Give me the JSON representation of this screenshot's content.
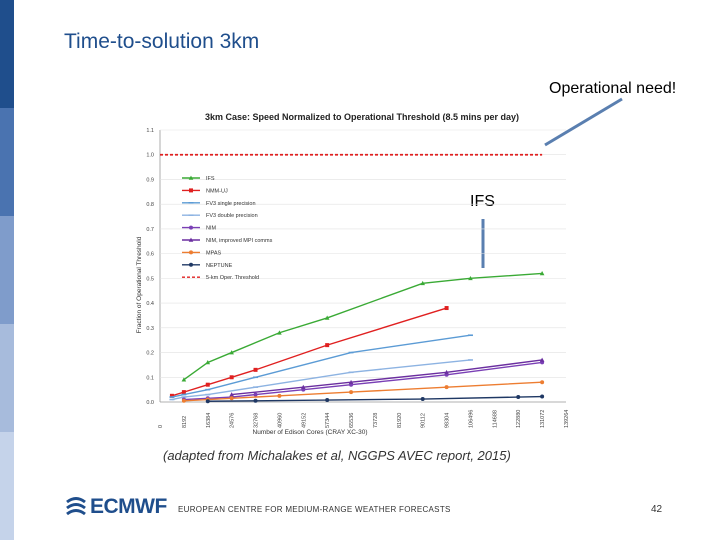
{
  "slide": {
    "title": "Time-to-solution 3km",
    "callout_operational": "Operational need!",
    "callout_ifs": "IFS",
    "caption": "(adapted from Michalakes et al, NGGPS AVEC report, 2015)",
    "footer": "EUROPEAN CENTRE FOR MEDIUM-RANGE WEATHER FORECASTS",
    "page_number": "42",
    "logo_text": "ECMWF",
    "sidebar_colors": [
      "#1f4e8c",
      "#4a73b0",
      "#7f9ccb",
      "#a7bbdc",
      "#c5d3ea"
    ]
  },
  "chart_data": {
    "type": "line",
    "title": "3km Case: Speed Normalized to Operational Threshold (8.5 mins per day)",
    "xlabel": "Number of Edison Cores (CRAY XC-30)",
    "ylabel": "Fraction of Operational Threshold",
    "ylim": [
      0,
      1.1
    ],
    "yticks": [
      "0.0",
      "0.1",
      "0.2",
      "0.3",
      "0.4",
      "0.5",
      "0.6",
      "0.7",
      "0.8",
      "0.9",
      "1.0",
      "1.1"
    ],
    "xticks": [
      "0",
      "8192",
      "16384",
      "24576",
      "32768",
      "40960",
      "49152",
      "57344",
      "65536",
      "73728",
      "81920",
      "90112",
      "98304",
      "106496",
      "114688",
      "122880",
      "131072",
      "139264"
    ],
    "xlim": [
      0,
      139264
    ],
    "legend_position": "top-left",
    "series": [
      {
        "name": "IFS",
        "color": "#3aaa35",
        "marker": "triangle",
        "x": [
          8192,
          16384,
          24576,
          40960,
          57344,
          90112,
          106496,
          131072
        ],
        "y": [
          0.09,
          0.16,
          0.2,
          0.28,
          0.34,
          0.48,
          0.5,
          0.52
        ]
      },
      {
        "name": "NMM-UJ",
        "color": "#e02020",
        "marker": "square",
        "x": [
          4096,
          8192,
          16384,
          24576,
          32768,
          57344,
          98304
        ],
        "y": [
          0.025,
          0.04,
          0.07,
          0.1,
          0.13,
          0.23,
          0.38
        ]
      },
      {
        "name": "FV3 single precision",
        "color": "#5b9bd5",
        "marker": "dash",
        "x": [
          4096,
          8192,
          16384,
          32768,
          65536,
          106496
        ],
        "y": [
          0.02,
          0.03,
          0.05,
          0.1,
          0.2,
          0.27
        ]
      },
      {
        "name": "FV3 double precision",
        "color": "#8db3e2",
        "marker": "dash",
        "x": [
          4096,
          8192,
          16384,
          32768,
          65536,
          106496
        ],
        "y": [
          0.01,
          0.02,
          0.03,
          0.06,
          0.12,
          0.17
        ]
      },
      {
        "name": "NIM",
        "color": "#7a3fb5",
        "marker": "circle",
        "x": [
          8192,
          16384,
          24576,
          32768,
          49152,
          65536,
          98304,
          131072
        ],
        "y": [
          0.01,
          0.015,
          0.02,
          0.03,
          0.05,
          0.07,
          0.11,
          0.16
        ]
      },
      {
        "name": "NIM, improved MPI comms",
        "color": "#6b2fa0",
        "marker": "triangle",
        "x": [
          24576,
          49152,
          65536,
          98304,
          131072
        ],
        "y": [
          0.03,
          0.06,
          0.08,
          0.12,
          0.17
        ]
      },
      {
        "name": "MPAS",
        "color": "#ed7d31",
        "marker": "circle",
        "x": [
          8192,
          16384,
          24576,
          40960,
          65536,
          98304,
          131072
        ],
        "y": [
          0.005,
          0.01,
          0.015,
          0.025,
          0.04,
          0.06,
          0.08
        ]
      },
      {
        "name": "NEPTUNE",
        "color": "#1f3864",
        "marker": "circle",
        "x": [
          16384,
          32768,
          57344,
          90112,
          122880,
          131072
        ],
        "y": [
          0.003,
          0.005,
          0.008,
          0.012,
          0.02,
          0.022
        ]
      },
      {
        "name": "5-km Oper. Threshold",
        "color": "#e02020",
        "marker": "none",
        "dashed": true,
        "x": [
          0,
          131072
        ],
        "y": [
          1.0,
          1.0
        ]
      }
    ]
  }
}
